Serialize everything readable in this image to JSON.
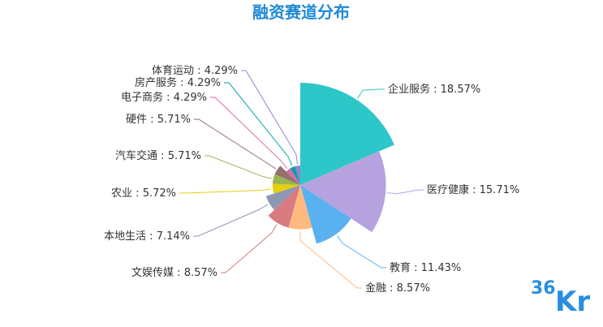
{
  "chart_data": {
    "type": "pie",
    "variant": "rose",
    "title": "融资赛道分布",
    "slices": [
      {
        "label": "企业服务",
        "value": 18.57,
        "display": "企业服务 : 18.57%",
        "color": "#2ec7c9"
      },
      {
        "label": "医疗健康",
        "value": 15.71,
        "display": "医疗健康 : 15.71%",
        "color": "#b6a2de"
      },
      {
        "label": "教育",
        "value": 11.43,
        "display": "教育 : 11.43%",
        "color": "#5ab1ef"
      },
      {
        "label": "金融",
        "value": 8.57,
        "display": "金融 : 8.57%",
        "color": "#ffb980"
      },
      {
        "label": "文娱传媒",
        "value": 8.57,
        "display": "文娱传媒 : 8.57%",
        "color": "#d87a80"
      },
      {
        "label": "本地生活",
        "value": 7.14,
        "display": "本地生活 : 7.14%",
        "color": "#8d98b3"
      },
      {
        "label": "农业",
        "value": 5.72,
        "display": "农业 : 5.72%",
        "color": "#e5cf0d"
      },
      {
        "label": "汽车交通",
        "value": 5.71,
        "display": "汽车交通 : 5.71%",
        "color": "#97b552"
      },
      {
        "label": "硬件",
        "value": 5.71,
        "display": "硬件 : 5.71%",
        "color": "#95706d"
      },
      {
        "label": "电子商务",
        "value": 4.29,
        "display": "电子商务 : 4.29%",
        "color": "#dc69aa"
      },
      {
        "label": "房产服务",
        "value": 4.29,
        "display": "房产服务 : 4.29%",
        "color": "#07a2a4"
      },
      {
        "label": "体育运动",
        "value": 4.29,
        "display": "体育运动 : 4.29%",
        "color": "#9a7fd1"
      }
    ]
  },
  "watermark": {
    "digits": "36",
    "letters": "Kr",
    "color": "#2a8ee0"
  }
}
